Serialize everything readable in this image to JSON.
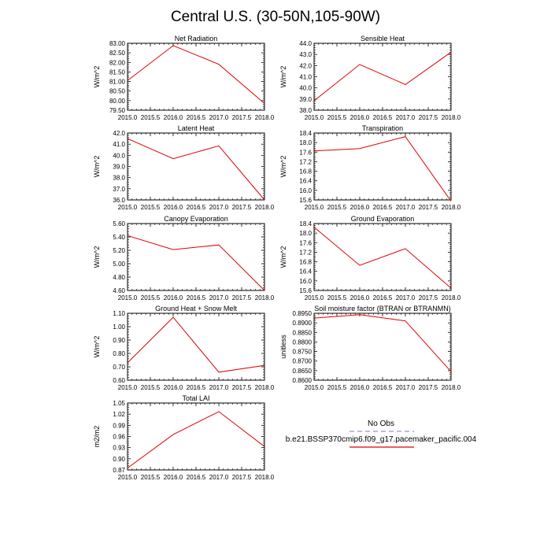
{
  "figure_title": "Central U.S. (30-50N,105-90W)",
  "legend": {
    "items": [
      {
        "label": "No Obs",
        "color": "#a9a9c8",
        "dash": true
      },
      {
        "label": "b.e21.BSSP370cmip6.f09_g17.pacemaker_pacific.004",
        "color": "#e00000",
        "dash": false
      }
    ]
  },
  "chart_data": [
    {
      "type": "line",
      "title": "Net Radiation",
      "ylabel": "W/m^2",
      "x": [
        2015.0,
        2016.0,
        2017.0,
        2018.0
      ],
      "xlim": [
        2015.0,
        2018.0
      ],
      "xticks": [
        "2015.0",
        "2015.5",
        "2016.0",
        "2016.5",
        "2017.0",
        "2017.5",
        "2018.0"
      ],
      "ylim": [
        79.5,
        83.0
      ],
      "yticks": [
        "79.50",
        "80.00",
        "80.50",
        "81.00",
        "81.50",
        "82.00",
        "82.50",
        "83.00"
      ],
      "series": [
        {
          "color": "#e00000",
          "values": [
            81.05,
            82.88,
            81.9,
            79.85
          ]
        }
      ]
    },
    {
      "type": "line",
      "title": "Sensible Heat",
      "ylabel": "W/m^2",
      "x": [
        2015.0,
        2016.0,
        2017.0,
        2018.0
      ],
      "xlim": [
        2015.0,
        2018.0
      ],
      "xticks": [
        "2015.0",
        "2015.5",
        "2016.0",
        "2016.5",
        "2017.0",
        "2017.5",
        "2018.0"
      ],
      "ylim": [
        38.0,
        44.0
      ],
      "yticks": [
        "38.0",
        "39.0",
        "40.0",
        "41.0",
        "42.0",
        "43.0",
        "44.0"
      ],
      "series": [
        {
          "color": "#e00000",
          "values": [
            38.85,
            42.1,
            40.3,
            43.2
          ]
        }
      ]
    },
    {
      "type": "line",
      "title": "Latent Heat",
      "ylabel": "W/m^2",
      "x": [
        2015.0,
        2016.0,
        2017.0,
        2018.0
      ],
      "xlim": [
        2015.0,
        2018.0
      ],
      "xticks": [
        "2015.0",
        "2015.5",
        "2016.0",
        "2016.5",
        "2017.0",
        "2017.5",
        "2018.0"
      ],
      "ylim": [
        36.0,
        42.0
      ],
      "yticks": [
        "36.0",
        "37.0",
        "38.0",
        "39.0",
        "40.0",
        "41.0",
        "42.0"
      ],
      "series": [
        {
          "color": "#e00000",
          "values": [
            41.5,
            39.7,
            40.85,
            36.0
          ]
        }
      ]
    },
    {
      "type": "line",
      "title": "Transpiration",
      "ylabel": "W/m^2",
      "x": [
        2015.0,
        2016.0,
        2017.0,
        2018.0
      ],
      "xlim": [
        2015.0,
        2018.0
      ],
      "xticks": [
        "2015.0",
        "2015.5",
        "2016.0",
        "2016.5",
        "2017.0",
        "2017.5",
        "2018.0"
      ],
      "ylim": [
        15.6,
        18.4
      ],
      "yticks": [
        "15.6",
        "16.0",
        "16.4",
        "16.8",
        "17.2",
        "17.6",
        "18.0",
        "18.4"
      ],
      "series": [
        {
          "color": "#e00000",
          "values": [
            17.65,
            17.75,
            18.25,
            15.55
          ]
        }
      ]
    },
    {
      "type": "line",
      "title": "Canopy Evaporation",
      "ylabel": "W/m^2",
      "x": [
        2015.0,
        2016.0,
        2017.0,
        2018.0
      ],
      "xlim": [
        2015.0,
        2018.0
      ],
      "xticks": [
        "2015.0",
        "2015.5",
        "2016.0",
        "2016.5",
        "2017.0",
        "2017.5",
        "2018.0"
      ],
      "ylim": [
        4.6,
        5.6
      ],
      "yticks": [
        "4.60",
        "4.80",
        "5.00",
        "5.20",
        "5.40",
        "5.60"
      ],
      "series": [
        {
          "color": "#e00000",
          "values": [
            5.42,
            5.21,
            5.28,
            4.6
          ]
        }
      ]
    },
    {
      "type": "line",
      "title": "Ground Evaporation",
      "ylabel": "W/m^2",
      "x": [
        2015.0,
        2016.0,
        2017.0,
        2018.0
      ],
      "xlim": [
        2015.0,
        2018.0
      ],
      "xticks": [
        "2015.0",
        "2015.5",
        "2016.0",
        "2016.5",
        "2017.0",
        "2017.5",
        "2018.0"
      ],
      "ylim": [
        15.6,
        18.4
      ],
      "yticks": [
        "15.6",
        "16.0",
        "16.4",
        "16.8",
        "17.2",
        "17.6",
        "18.0",
        "18.4"
      ],
      "series": [
        {
          "color": "#e00000",
          "values": [
            18.25,
            16.65,
            17.35,
            15.7
          ]
        }
      ]
    },
    {
      "type": "line",
      "title": "Ground Heat + Snow Melt",
      "ylabel": "W/m^2",
      "x": [
        2015.0,
        2016.0,
        2017.0,
        2018.0
      ],
      "xlim": [
        2015.0,
        2018.0
      ],
      "xticks": [
        "2015.0",
        "2015.5",
        "2016.0",
        "2016.5",
        "2017.0",
        "2017.5",
        "2018.0"
      ],
      "ylim": [
        0.6,
        1.1
      ],
      "yticks": [
        "0.60",
        "0.70",
        "0.80",
        "0.90",
        "1.00",
        "1.10"
      ],
      "series": [
        {
          "color": "#e00000",
          "values": [
            0.73,
            1.07,
            0.66,
            0.71
          ]
        }
      ]
    },
    {
      "type": "line",
      "title": "Soil moisture factor (BTRAN or BTRANMN)",
      "ylabel": "unitless",
      "x": [
        2015.0,
        2016.0,
        2017.0,
        2018.0
      ],
      "xlim": [
        2015.0,
        2018.0
      ],
      "xticks": [
        "2015.0",
        "2015.5",
        "2016.0",
        "2016.5",
        "2017.0",
        "2017.5",
        "2018.0"
      ],
      "ylim": [
        0.86,
        0.895
      ],
      "yticks": [
        "0.8600",
        "0.8650",
        "0.8700",
        "0.8750",
        "0.8800",
        "0.8850",
        "0.8900",
        "0.8950"
      ],
      "series": [
        {
          "color": "#e00000",
          "values": [
            0.8925,
            0.8943,
            0.891,
            0.8645
          ]
        }
      ]
    },
    {
      "type": "line",
      "title": "Total LAI",
      "ylabel": "m2/m2",
      "x": [
        2015.0,
        2016.0,
        2017.0,
        2018.0
      ],
      "xlim": [
        2015.0,
        2018.0
      ],
      "xticks": [
        "2015.0",
        "2015.5",
        "2016.0",
        "2016.5",
        "2017.0",
        "2017.5",
        "2018.0"
      ],
      "ylim": [
        0.87,
        1.05
      ],
      "yticks": [
        "0.87",
        "0.90",
        "0.93",
        "0.96",
        "0.99",
        "1.02",
        "1.05"
      ],
      "series": [
        {
          "color": "#e00000",
          "values": [
            0.875,
            0.965,
            1.027,
            0.933
          ]
        }
      ]
    }
  ]
}
